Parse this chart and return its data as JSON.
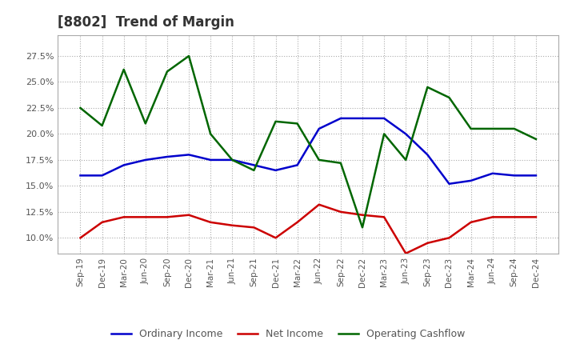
{
  "title": "[8802]  Trend of Margin",
  "x_labels": [
    "Sep-19",
    "Dec-19",
    "Mar-20",
    "Jun-20",
    "Sep-20",
    "Dec-20",
    "Mar-21",
    "Jun-21",
    "Sep-21",
    "Dec-21",
    "Mar-22",
    "Jun-22",
    "Sep-22",
    "Dec-22",
    "Mar-23",
    "Jun-23",
    "Sep-23",
    "Dec-23",
    "Mar-24",
    "Jun-24",
    "Sep-24",
    "Dec-24"
  ],
  "ordinary_income": [
    16.0,
    16.0,
    17.0,
    17.5,
    17.8,
    18.0,
    17.5,
    17.5,
    17.0,
    16.5,
    17.0,
    20.5,
    21.5,
    21.5,
    21.5,
    20.0,
    18.0,
    15.2,
    15.5,
    16.2,
    16.0,
    16.0
  ],
  "net_income": [
    10.0,
    11.5,
    12.0,
    12.0,
    12.0,
    12.2,
    11.5,
    11.2,
    11.0,
    10.0,
    11.5,
    13.2,
    12.5,
    12.2,
    12.0,
    8.5,
    9.5,
    10.0,
    11.5,
    12.0,
    12.0,
    12.0
  ],
  "operating_cashflow": [
    22.5,
    20.8,
    26.2,
    21.0,
    26.0,
    27.5,
    20.0,
    17.5,
    16.5,
    21.2,
    21.0,
    17.5,
    17.2,
    11.0,
    20.0,
    17.5,
    24.5,
    23.5,
    20.5,
    20.5,
    20.5,
    19.5
  ],
  "ylim": [
    8.5,
    29.5
  ],
  "yticks": [
    10.0,
    12.5,
    15.0,
    17.5,
    20.0,
    22.5,
    25.0,
    27.5
  ],
  "colors": {
    "ordinary_income": "#0000cc",
    "net_income": "#cc0000",
    "operating_cashflow": "#006600",
    "background": "#ffffff",
    "grid": "#888888",
    "plot_bg": "#ffffff"
  },
  "legend": {
    "ordinary_income": "Ordinary Income",
    "net_income": "Net Income",
    "operating_cashflow": "Operating Cashflow"
  },
  "title_color": "#333333",
  "tick_color": "#555555"
}
